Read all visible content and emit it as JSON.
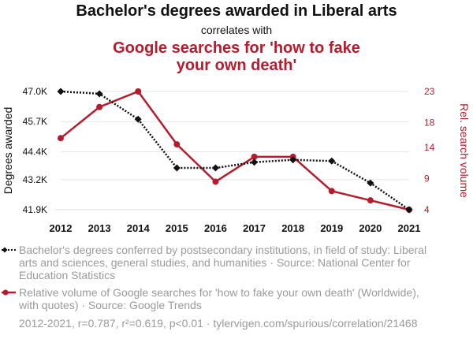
{
  "title": "Bachelor's degrees awarded in Liberal arts",
  "connector": "correlates with",
  "subtitle": "Google searches for 'how to fake your own death'",
  "colors": {
    "series1": "#111111",
    "series2": "#b51c2e",
    "grid": "#e6e6e6"
  },
  "chart_data": {
    "type": "line",
    "x": [
      "2012",
      "2013",
      "2014",
      "2015",
      "2016",
      "2017",
      "2018",
      "2019",
      "2020",
      "2021"
    ],
    "xlabel": "",
    "y_left": {
      "label": "Degrees awarded",
      "ticks": [
        "41.9K",
        "43.2K",
        "44.4K",
        "45.7K",
        "47.0K"
      ],
      "tick_values": [
        41900,
        43200,
        44400,
        45700,
        47000
      ],
      "range": [
        41900,
        47000
      ]
    },
    "y_right": {
      "label": "Rel. search volume",
      "ticks": [
        "4",
        "9",
        "14",
        "18",
        "23"
      ],
      "tick_values": [
        4,
        9,
        14,
        18,
        23
      ],
      "range": [
        4,
        23
      ]
    },
    "grid": true,
    "series": [
      {
        "axis": "left",
        "style": "dotted",
        "marker": "diamond",
        "values": [
          47000,
          46900,
          45800,
          43700,
          43700,
          43950,
          44050,
          44000,
          43050,
          41900
        ]
      },
      {
        "axis": "right",
        "style": "solid",
        "marker": "circle",
        "values": [
          15.5,
          20.5,
          23,
          14.5,
          8.5,
          12.5,
          12.5,
          7,
          5.5,
          4
        ]
      }
    ]
  },
  "legend": [
    {
      "text": "Bachelor's degrees conferred by postsecondary institutions, in field of study: Liberal arts and sciences, general studies, and humanities · Source: National Center for Education Statistics"
    },
    {
      "text": "Relative volume of Google searches for 'how to fake your own death' (Worldwide), with quotes) · Source: Google Trends"
    }
  ],
  "footnote": "2012-2021, r=0.787, r²=0.619, p<0.01 · tylervigen.com/spurious/correlation/21468"
}
